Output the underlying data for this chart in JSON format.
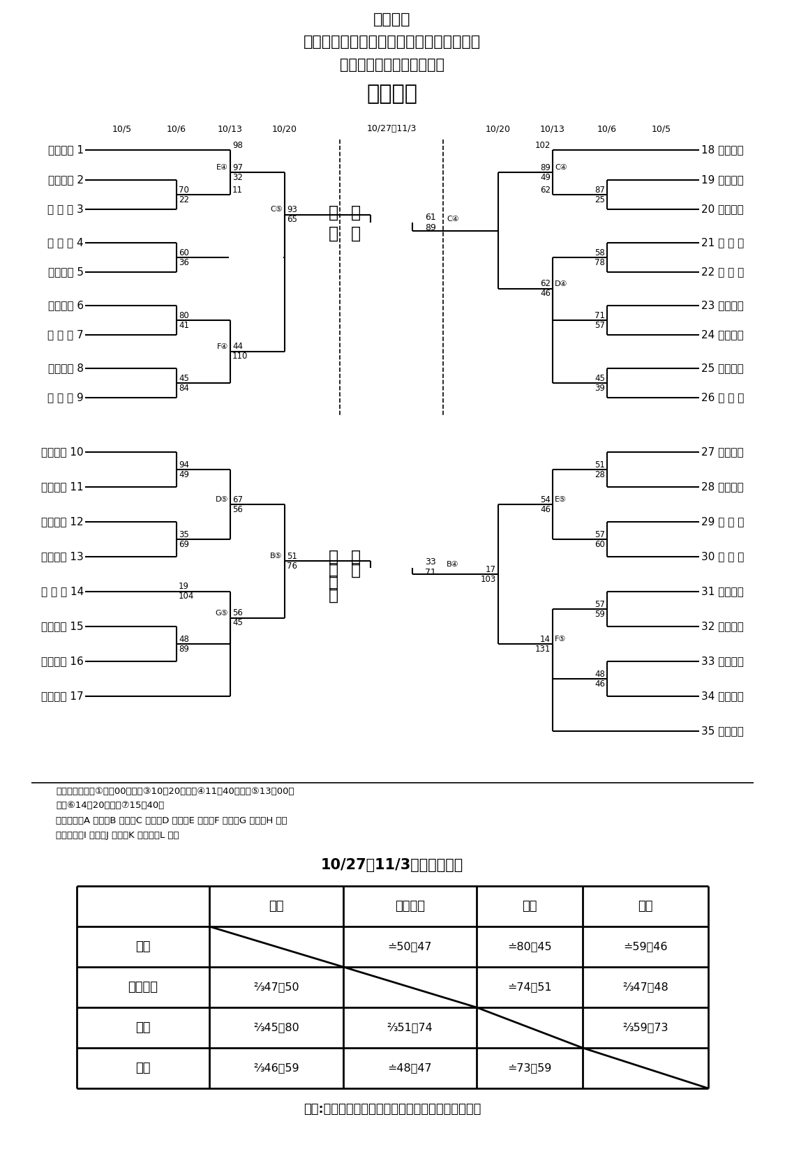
{
  "title1": "第５６回",
  "title2": "令和元年度練馬区中学校生徒総合体育大会",
  "title3": "バスケットボール新人大会",
  "title4": "＜男子＞",
  "bg_color": "#ffffff",
  "dates_top_left": [
    "10/5",
    "10/6",
    "10/13",
    "10/20"
  ],
  "date_center": "10/27・11/3",
  "dates_top_right": [
    "10/20",
    "10/13",
    "10/6",
    "10/5"
  ],
  "left_upper_teams": [
    [
      "田",
      "柳",
      "1"
    ],
    [
      "光",
      "一",
      "2"
    ],
    [
      "棟馬東",
      "3"
    ],
    [
      "都大泉",
      "4"
    ],
    [
      "棟",
      "馬",
      "5"
    ],
    [
      "北",
      "町",
      "6"
    ],
    [
      "三原台",
      "7"
    ],
    [
      "石神井東",
      "8"
    ],
    [
      "石神井",
      "9"
    ]
  ],
  "right_upper_teams": [
    [
      "18",
      "貫",
      "井"
    ],
    [
      "19",
      "豊",
      "二"
    ],
    [
      "20",
      "大",
      "北"
    ],
    [
      "21",
      "開進四"
    ],
    [
      "22",
      "大泉桃"
    ],
    [
      "23",
      "中",
      "村"
    ],
    [
      "24",
      "大",
      "泉"
    ],
    [
      "25",
      "学",
      "附"
    ],
    [
      "26",
      "南が丘"
    ]
  ],
  "left_lower_teams": [
    [
      "豊",
      "玉",
      "10"
    ],
    [
      "関",
      "11"
    ],
    [
      "大",
      "二",
      "12"
    ],
    [
      "光",
      "三",
      "13"
    ],
    [
      "早高院",
      "14"
    ],
    [
      "石",
      "西",
      "15"
    ],
    [
      "大",
      "西",
      "16"
    ],
    [
      "学",
      "園",
      "17"
    ]
  ],
  "right_lower_teams": [
    [
      "27",
      "石神井南"
    ],
    [
      "28",
      "光",
      "二"
    ],
    [
      "29",
      "開進一"
    ],
    [
      "30",
      "開進三"
    ],
    [
      "31",
      "武",
      "蔵"
    ],
    [
      "32",
      "豊",
      "溪"
    ],
    [
      "33",
      "八",
      "坂"
    ],
    [
      "34",
      "上",
      "石"
    ],
    [
      "35",
      "谷",
      "原"
    ]
  ],
  "venue_line1": "試合開始時刻　①９：00～　　③10：20～　　④11：40～　　⑤13：00～",
  "venue_line2": "　　⑥14：20～　　⑦15：40～",
  "venue_line3": "試合会場　A 大泉　B 光二　C 田柳　D 中村　E 練馬　F 石東　G 石西　H 開三",
  "venue_line4": "　　　　　I 光三　J 谷原　K 三原台　L 豊溪",
  "final_title": "10/27・11/3　決勝リーグ",
  "table_col_headers": [
    "田柳",
    "石神井西",
    "中村",
    "谷原"
  ],
  "table_row_headers": [
    "田柳",
    "石神井西",
    "中村",
    "谷原"
  ],
  "table_cells": [
    [
      "",
      "≐50－47",
      "≐80－45",
      "≐59－46"
    ],
    [
      "⅔47－50",
      "",
      "≐74－51",
      "⅔47－48"
    ],
    [
      "⅔45－80",
      "⅔51－74",
      "",
      "⅔59－73"
    ],
    [
      "⅔46－59",
      "≐48－47",
      "≐73－59",
      ""
    ]
  ],
  "result": "優勝:田柳　準優勝：谷原　第三位：石神井西・中村"
}
